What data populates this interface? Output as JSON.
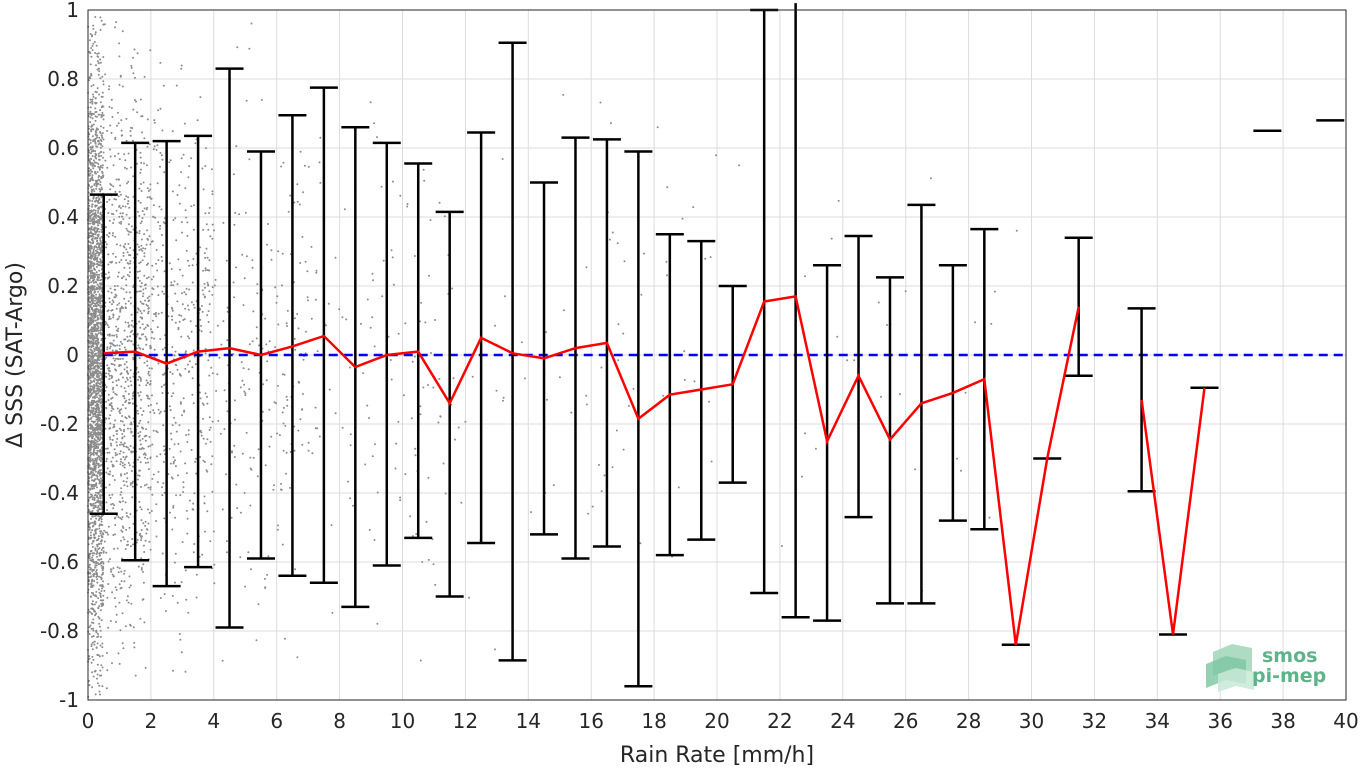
{
  "chart_data": {
    "type": "scatter",
    "title": "",
    "xlabel": "Rain Rate [mm/h]",
    "ylabel": "Δ SSS (SAT-Argo)",
    "xlim": [
      0,
      40
    ],
    "ylim": [
      -1,
      1
    ],
    "xticks": [
      0,
      2,
      4,
      6,
      8,
      10,
      12,
      14,
      16,
      18,
      20,
      22,
      24,
      26,
      28,
      30,
      32,
      34,
      36,
      38,
      40
    ],
    "yticks": [
      -1,
      -0.8,
      -0.6,
      -0.4,
      -0.2,
      0,
      0.2,
      0.4,
      0.6,
      0.8,
      1
    ],
    "ytick_labels": [
      "-1",
      "-0.8",
      "-0.6",
      "-0.4",
      "-0.2",
      "0",
      "0.2",
      "0.4",
      "0.6",
      "0.8",
      "1"
    ],
    "grid": true,
    "zero_line": {
      "y": 0,
      "style": "dashed",
      "color": "#0000ff"
    },
    "colors": {
      "scatter": "#8c8c8c",
      "mean": "#ff0000",
      "errorbar": "#000000",
      "zero": "#0000ff"
    },
    "scatter_note_points": "gray point cloud densest at rain rate 0-2 mm/h, sparse up to ~30 mm/h",
    "bins": [
      {
        "x": 0.5,
        "mean": 0.005,
        "low": -0.46,
        "high": 0.465
      },
      {
        "x": 1.5,
        "mean": 0.01,
        "low": -0.595,
        "high": 0.615
      },
      {
        "x": 2.5,
        "mean": -0.025,
        "low": -0.67,
        "high": 0.62
      },
      {
        "x": 3.5,
        "mean": 0.01,
        "low": -0.615,
        "high": 0.635
      },
      {
        "x": 4.5,
        "mean": 0.02,
        "low": -0.79,
        "high": 0.83
      },
      {
        "x": 5.5,
        "mean": 0.0,
        "low": -0.59,
        "high": 0.59
      },
      {
        "x": 6.5,
        "mean": 0.025,
        "low": -0.64,
        "high": 0.695
      },
      {
        "x": 7.5,
        "mean": 0.055,
        "low": -0.66,
        "high": 0.775
      },
      {
        "x": 8.5,
        "mean": -0.035,
        "low": -0.73,
        "high": 0.66
      },
      {
        "x": 9.5,
        "mean": 0.0,
        "low": -0.61,
        "high": 0.615
      },
      {
        "x": 10.5,
        "mean": 0.01,
        "low": -0.53,
        "high": 0.555
      },
      {
        "x": 11.5,
        "mean": -0.14,
        "low": -0.7,
        "high": 0.415
      },
      {
        "x": 12.5,
        "mean": 0.05,
        "low": -0.545,
        "high": 0.645
      },
      {
        "x": 13.5,
        "mean": 0.005,
        "low": -0.885,
        "high": 0.905
      },
      {
        "x": 14.5,
        "mean": -0.01,
        "low": -0.52,
        "high": 0.5
      },
      {
        "x": 15.5,
        "mean": 0.02,
        "low": -0.59,
        "high": 0.63
      },
      {
        "x": 16.5,
        "mean": 0.035,
        "low": -0.555,
        "high": 0.625
      },
      {
        "x": 17.5,
        "mean": -0.185,
        "low": -0.96,
        "high": 0.59
      },
      {
        "x": 18.5,
        "mean": -0.115,
        "low": -0.58,
        "high": 0.35
      },
      {
        "x": 19.5,
        "mean": -0.1,
        "low": -0.535,
        "high": 0.33
      },
      {
        "x": 20.5,
        "mean": -0.085,
        "low": -0.37,
        "high": 0.2
      },
      {
        "x": 21.5,
        "mean": 0.155,
        "low": -0.69,
        "high": 1.0
      },
      {
        "x": 22.5,
        "mean": 0.17,
        "low": -0.76,
        "high": 1.1
      },
      {
        "x": 23.5,
        "mean": -0.25,
        "low": -0.77,
        "high": 0.26
      },
      {
        "x": 24.5,
        "mean": -0.06,
        "low": -0.47,
        "high": 0.345
      },
      {
        "x": 25.5,
        "mean": -0.245,
        "low": -0.72,
        "high": 0.225
      },
      {
        "x": 26.5,
        "mean": -0.14,
        "low": -0.72,
        "high": 0.435
      },
      {
        "x": 27.5,
        "mean": -0.11,
        "low": -0.48,
        "high": 0.26
      },
      {
        "x": 28.5,
        "mean": -0.07,
        "low": -0.505,
        "high": 0.365
      },
      {
        "x": 29.5,
        "mean": -0.84,
        "low": -0.84,
        "high": -0.84
      },
      {
        "x": 30.5,
        "mean": -0.3,
        "low": -0.3,
        "high": -0.3
      },
      {
        "x": 31.5,
        "mean": 0.14,
        "low": -0.06,
        "high": 0.34
      },
      {
        "x": 33.5,
        "mean": -0.13,
        "low": -0.395,
        "high": 0.135
      },
      {
        "x": 34.5,
        "mean": -0.81,
        "low": -0.81,
        "high": -0.81
      },
      {
        "x": 35.5,
        "mean": -0.095,
        "low": -0.095,
        "high": -0.095
      },
      {
        "x": 37.5,
        "mean": 0.65,
        "low": 0.65,
        "high": 0.65
      },
      {
        "x": 39.5,
        "mean": 0.68,
        "low": 0.68,
        "high": 0.68
      }
    ],
    "mean_line_segments": [
      [
        0.5,
        1.5,
        2.5,
        3.5,
        4.5,
        5.5,
        6.5,
        7.5,
        8.5,
        9.5,
        10.5,
        11.5,
        12.5,
        13.5,
        14.5,
        15.5,
        16.5,
        17.5,
        18.5,
        19.5,
        20.5,
        21.5,
        22.5,
        23.5,
        24.5,
        25.5,
        26.5,
        27.5,
        28.5,
        29.5,
        30.5,
        31.5
      ],
      [
        33.5,
        34.5,
        35.5
      ]
    ]
  },
  "logo": {
    "line1": "smos",
    "line2": "pi-mep"
  }
}
